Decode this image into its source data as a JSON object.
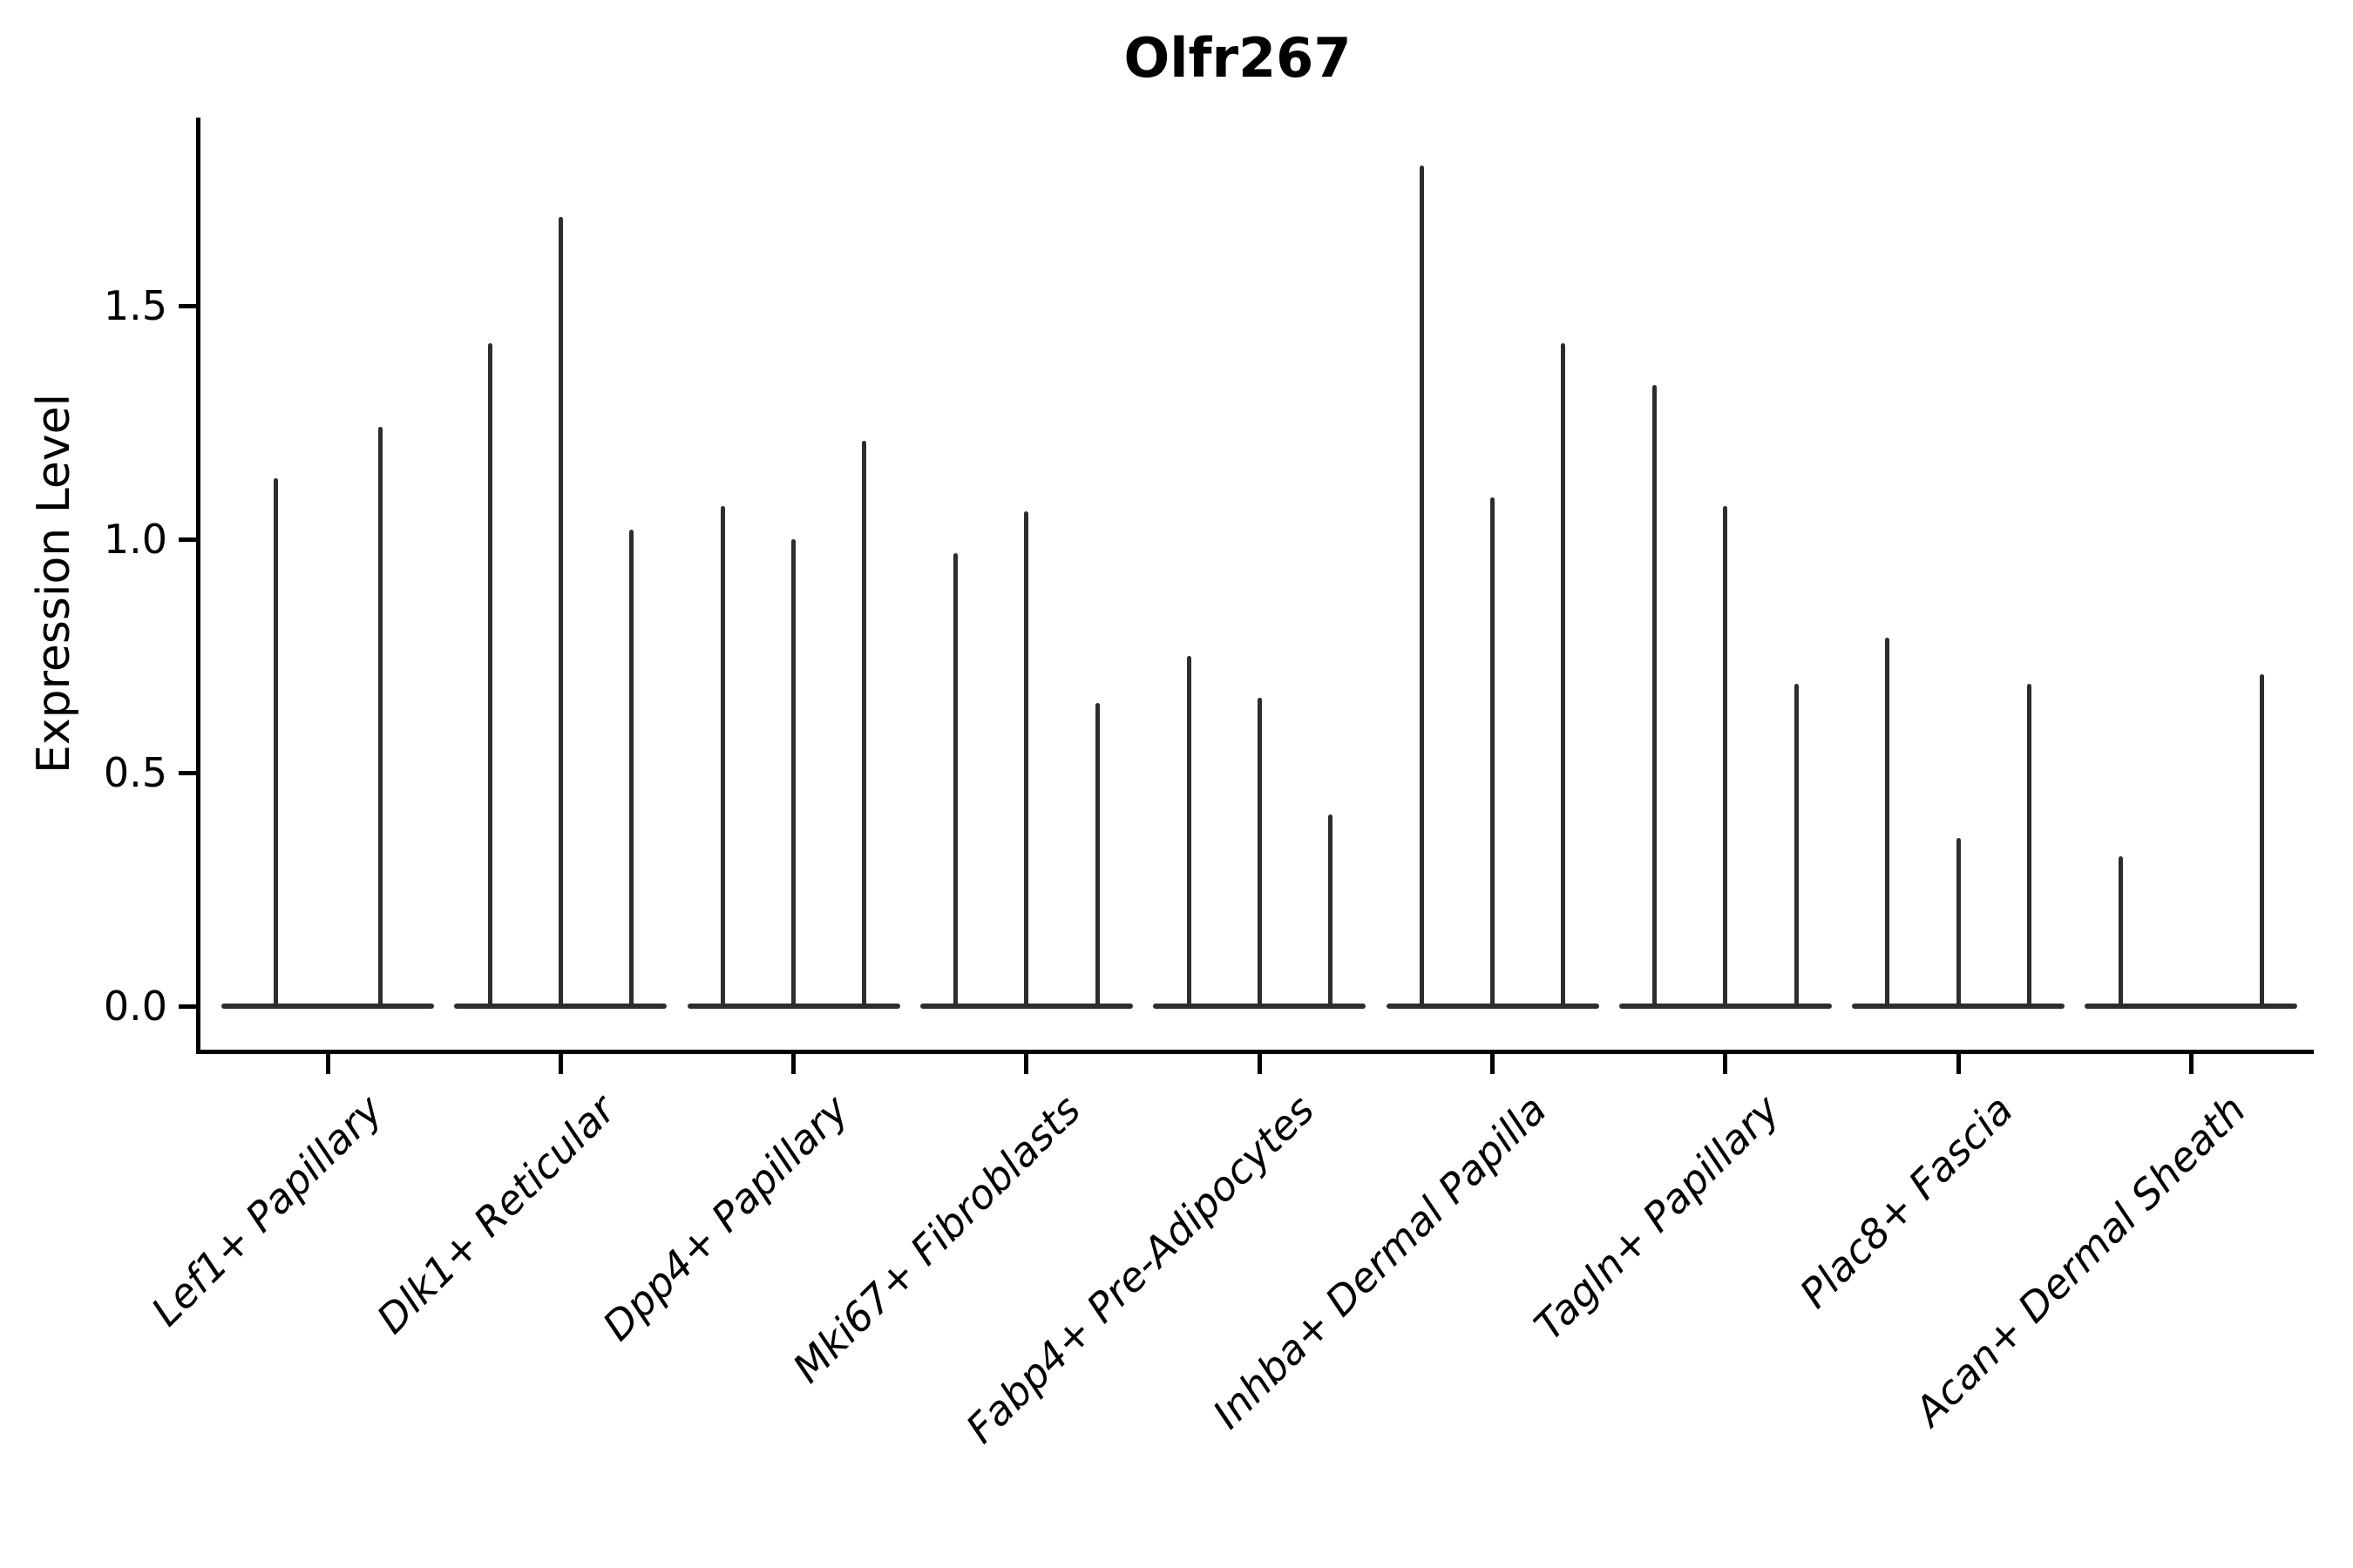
{
  "title": "Olfr267",
  "y_axis": {
    "label": "Expression Level",
    "tick_labels": [
      "0.0",
      "0.5",
      "1.0",
      "1.5"
    ]
  },
  "colors": {
    "violin": "#2d2d2d",
    "axis": "#000000",
    "text": "#000000",
    "background": "#ffffff"
  },
  "chart_data": {
    "type": "violin",
    "title": "Olfr267",
    "xlabel": "",
    "ylabel": "Expression Level",
    "ylim": [
      -0.09,
      1.88
    ],
    "yticks": [
      0.0,
      0.5,
      1.0,
      1.5
    ],
    "ytick_labels": [
      "0.0",
      "0.5",
      "1.0",
      "1.5"
    ],
    "grid": false,
    "legend": "none",
    "categories": [
      "Lef1+ Papillary",
      "Dlk1+ Reticular",
      "Dpp4+ Papillary",
      "Mki67+ Fibroblasts",
      "Fabp4+ Pre-Adipocytes",
      "Inhba+ Dermal Papilla",
      "Tagln+ Papillary",
      "Plac8+ Fascia",
      "Acan+ Dermal Sheath"
    ],
    "description": "Needle-style violin plot: each cell-type group shows 2-3 thin violins collapsed to a flat baseline at expression 0 with narrow spikes reaching the maximum expression value; a violin with value 0 has no spike.",
    "groups": [
      {
        "category": "Lef1+ Papillary",
        "violin_max_expression": [
          1.13,
          1.24
        ]
      },
      {
        "category": "Dlk1+ Reticular",
        "violin_max_expression": [
          1.42,
          1.69,
          1.02
        ]
      },
      {
        "category": "Dpp4+ Papillary",
        "violin_max_expression": [
          1.07,
          1.0,
          1.21
        ]
      },
      {
        "category": "Mki67+ Fibroblasts",
        "violin_max_expression": [
          0.97,
          1.06,
          0.65
        ]
      },
      {
        "category": "Fabp4+ Pre-Adipocytes",
        "violin_max_expression": [
          0.75,
          0.66,
          0.41
        ]
      },
      {
        "category": "Inhba+ Dermal Papilla",
        "violin_max_expression": [
          1.8,
          1.09,
          1.42
        ]
      },
      {
        "category": "Tagln+ Papillary",
        "violin_max_expression": [
          1.33,
          1.07,
          0.69
        ]
      },
      {
        "category": "Plac8+ Fascia",
        "violin_max_expression": [
          0.79,
          0.36,
          0.69
        ]
      },
      {
        "category": "Acan+ Dermal Sheath",
        "violin_max_expression": [
          0.32,
          0.0,
          0.71
        ]
      }
    ]
  }
}
